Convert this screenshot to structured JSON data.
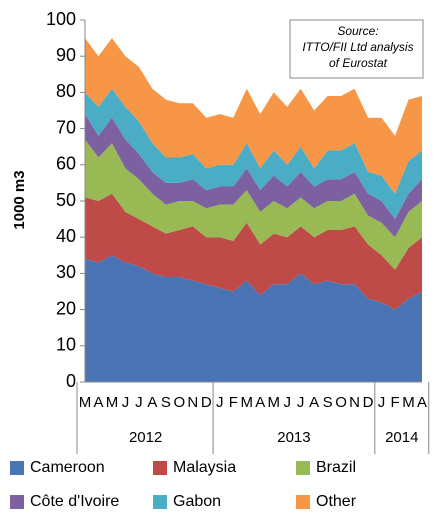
{
  "chart_data": {
    "type": "stacked_area",
    "y_label": "1000 m3",
    "annotation": [
      "Source:",
      "ITTO/FII Ltd analysis",
      "of Eurostat"
    ],
    "categories": [
      "M",
      "A",
      "M",
      "J",
      "J",
      "A",
      "S",
      "O",
      "N",
      "D",
      "J",
      "F",
      "M",
      "A",
      "M",
      "J",
      "J",
      "A",
      "S",
      "O",
      "N",
      "D",
      "J",
      "F",
      "M",
      "A"
    ],
    "groups": [
      {
        "label": "2012",
        "start": 0,
        "end": 9
      },
      {
        "label": "2013",
        "start": 10,
        "end": 21
      },
      {
        "label": "2014",
        "start": 22,
        "end": 25
      }
    ],
    "series": [
      {
        "name": "Cameroon",
        "color": "#4a74b4",
        "values": [
          34,
          33,
          35,
          33,
          32,
          30,
          29,
          29,
          28,
          27,
          26,
          25,
          28,
          24,
          27,
          27,
          30,
          27,
          28,
          27,
          27,
          23,
          22,
          20,
          23,
          25
        ]
      },
      {
        "name": "Malaysia",
        "color": "#be4b48",
        "values": [
          17,
          17,
          17,
          14,
          13,
          13,
          12,
          13,
          15,
          13,
          14,
          14,
          16,
          14,
          14,
          13,
          13,
          13,
          14,
          15,
          16,
          15,
          13,
          11,
          14,
          15
        ]
      },
      {
        "name": "Brazil",
        "color": "#98b954",
        "values": [
          16,
          12,
          14,
          12,
          11,
          9,
          8,
          8,
          7,
          8,
          9,
          10,
          9,
          9,
          9,
          8,
          8,
          8,
          8,
          8,
          9,
          8,
          9,
          9,
          10,
          10
        ]
      },
      {
        "name": "Côte d'Ivoire",
        "color": "#7d60a0",
        "values": [
          7,
          6,
          7,
          8,
          7,
          6,
          6,
          5,
          6,
          5,
          5,
          5,
          6,
          6,
          7,
          6,
          7,
          6,
          6,
          6,
          6,
          6,
          6,
          5,
          5,
          6
        ]
      },
      {
        "name": "Gabon",
        "color": "#4bacc6",
        "values": [
          6,
          8,
          8,
          9,
          9,
          8,
          7,
          7,
          7,
          6,
          6,
          6,
          7,
          6,
          7,
          6,
          7,
          5,
          8,
          8,
          8,
          6,
          7,
          7,
          9,
          8
        ]
      },
      {
        "name": "Other",
        "color": "#f79646",
        "values": [
          15,
          14,
          14,
          14,
          15,
          15,
          16,
          15,
          14,
          14,
          14,
          13,
          15,
          15,
          16,
          16,
          16,
          16,
          15,
          15,
          15,
          15,
          16,
          16,
          17,
          15
        ]
      }
    ],
    "ylim": [
      0,
      100
    ],
    "yticks": [
      0,
      10,
      20,
      30,
      40,
      50,
      60,
      70,
      80,
      90,
      100
    ],
    "grid": false,
    "legend": "bottom"
  }
}
